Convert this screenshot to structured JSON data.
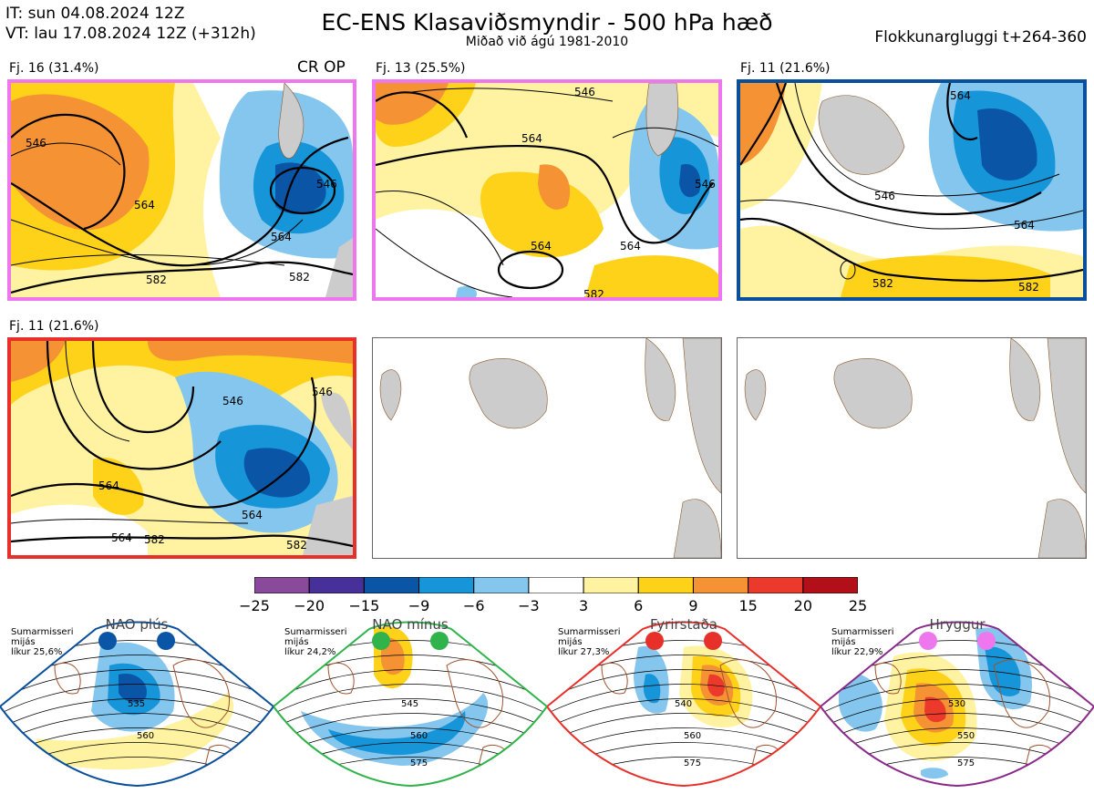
{
  "header": {
    "it_line": "IT: sun 04.08.2024 12Z",
    "vt_line": "VT: lau 17.08.2024 12Z  (+312h)",
    "title": "EC-ENS Klasaviðsmyndir - 500 hPa hæð",
    "subtitle": "Miðað við ágú 1981-2010",
    "window": "Flokkunargluggi t+264-360"
  },
  "panels": [
    {
      "label": "Fj. 16 (31.4%)",
      "extra": "CR OP",
      "border": "#ee77ee",
      "contours": [
        "546",
        "564",
        "582",
        "564",
        "546",
        "582"
      ]
    },
    {
      "label": "Fj. 13 (25.5%)",
      "border": "#ee77ee",
      "contours": [
        "546",
        "564",
        "564",
        "546",
        "564",
        "582"
      ]
    },
    {
      "label": "Fj. 11 (21.6%)",
      "border": "#0a4f9c",
      "contours": [
        "546",
        "564",
        "564",
        "582",
        "582"
      ]
    },
    {
      "label": "Fj. 11 (21.6%)",
      "border": "#e8302a",
      "contours": [
        "546",
        "564",
        "546",
        "564",
        "564",
        "582",
        "582"
      ]
    }
  ],
  "colorbar": {
    "ticks": [
      "−25",
      "−20",
      "−15",
      "−9",
      "−6",
      "−3",
      "3",
      "6",
      "9",
      "15",
      "20",
      "25"
    ],
    "colors": [
      "#8a4a9c",
      "#47309a",
      "#0a55a6",
      "#1695d8",
      "#84c6ee",
      "#ffffff",
      "#fff2a0",
      "#ffd21a",
      "#f59233",
      "#eb3a2c",
      "#b30f19"
    ]
  },
  "regimes": [
    {
      "title": "NAO plús",
      "l1": "Sumarmisseri",
      "l2": "mijás",
      "l3": "líkur 25,6%",
      "dot": "#0a55a6",
      "edge": "#0a4f9c",
      "c1": "535",
      "c2": "560"
    },
    {
      "title": "NAO mínus",
      "l1": "Sumarmisseri",
      "l2": "mijás",
      "l3": "líkur 24,2%",
      "dot": "#2fb34a",
      "edge": "#2fb34a",
      "c1": "545",
      "c2": "560",
      "c3": "575"
    },
    {
      "title": "Fyrirstaða",
      "l1": "Sumarmisseri",
      "l2": "mijás",
      "l3": "líkur 27,3%",
      "dot": "#e8302a",
      "edge": "#e8302a",
      "c1": "540",
      "c2": "560",
      "c3": "575"
    },
    {
      "title": "Hryggur",
      "l1": "Sumarmisseri",
      "l2": "mijás",
      "l3": "líkur 22,9%",
      "dot": "#ee77ee",
      "edge": "#8a2a8a",
      "c1": "530",
      "c2": "550",
      "c3": "575"
    }
  ]
}
